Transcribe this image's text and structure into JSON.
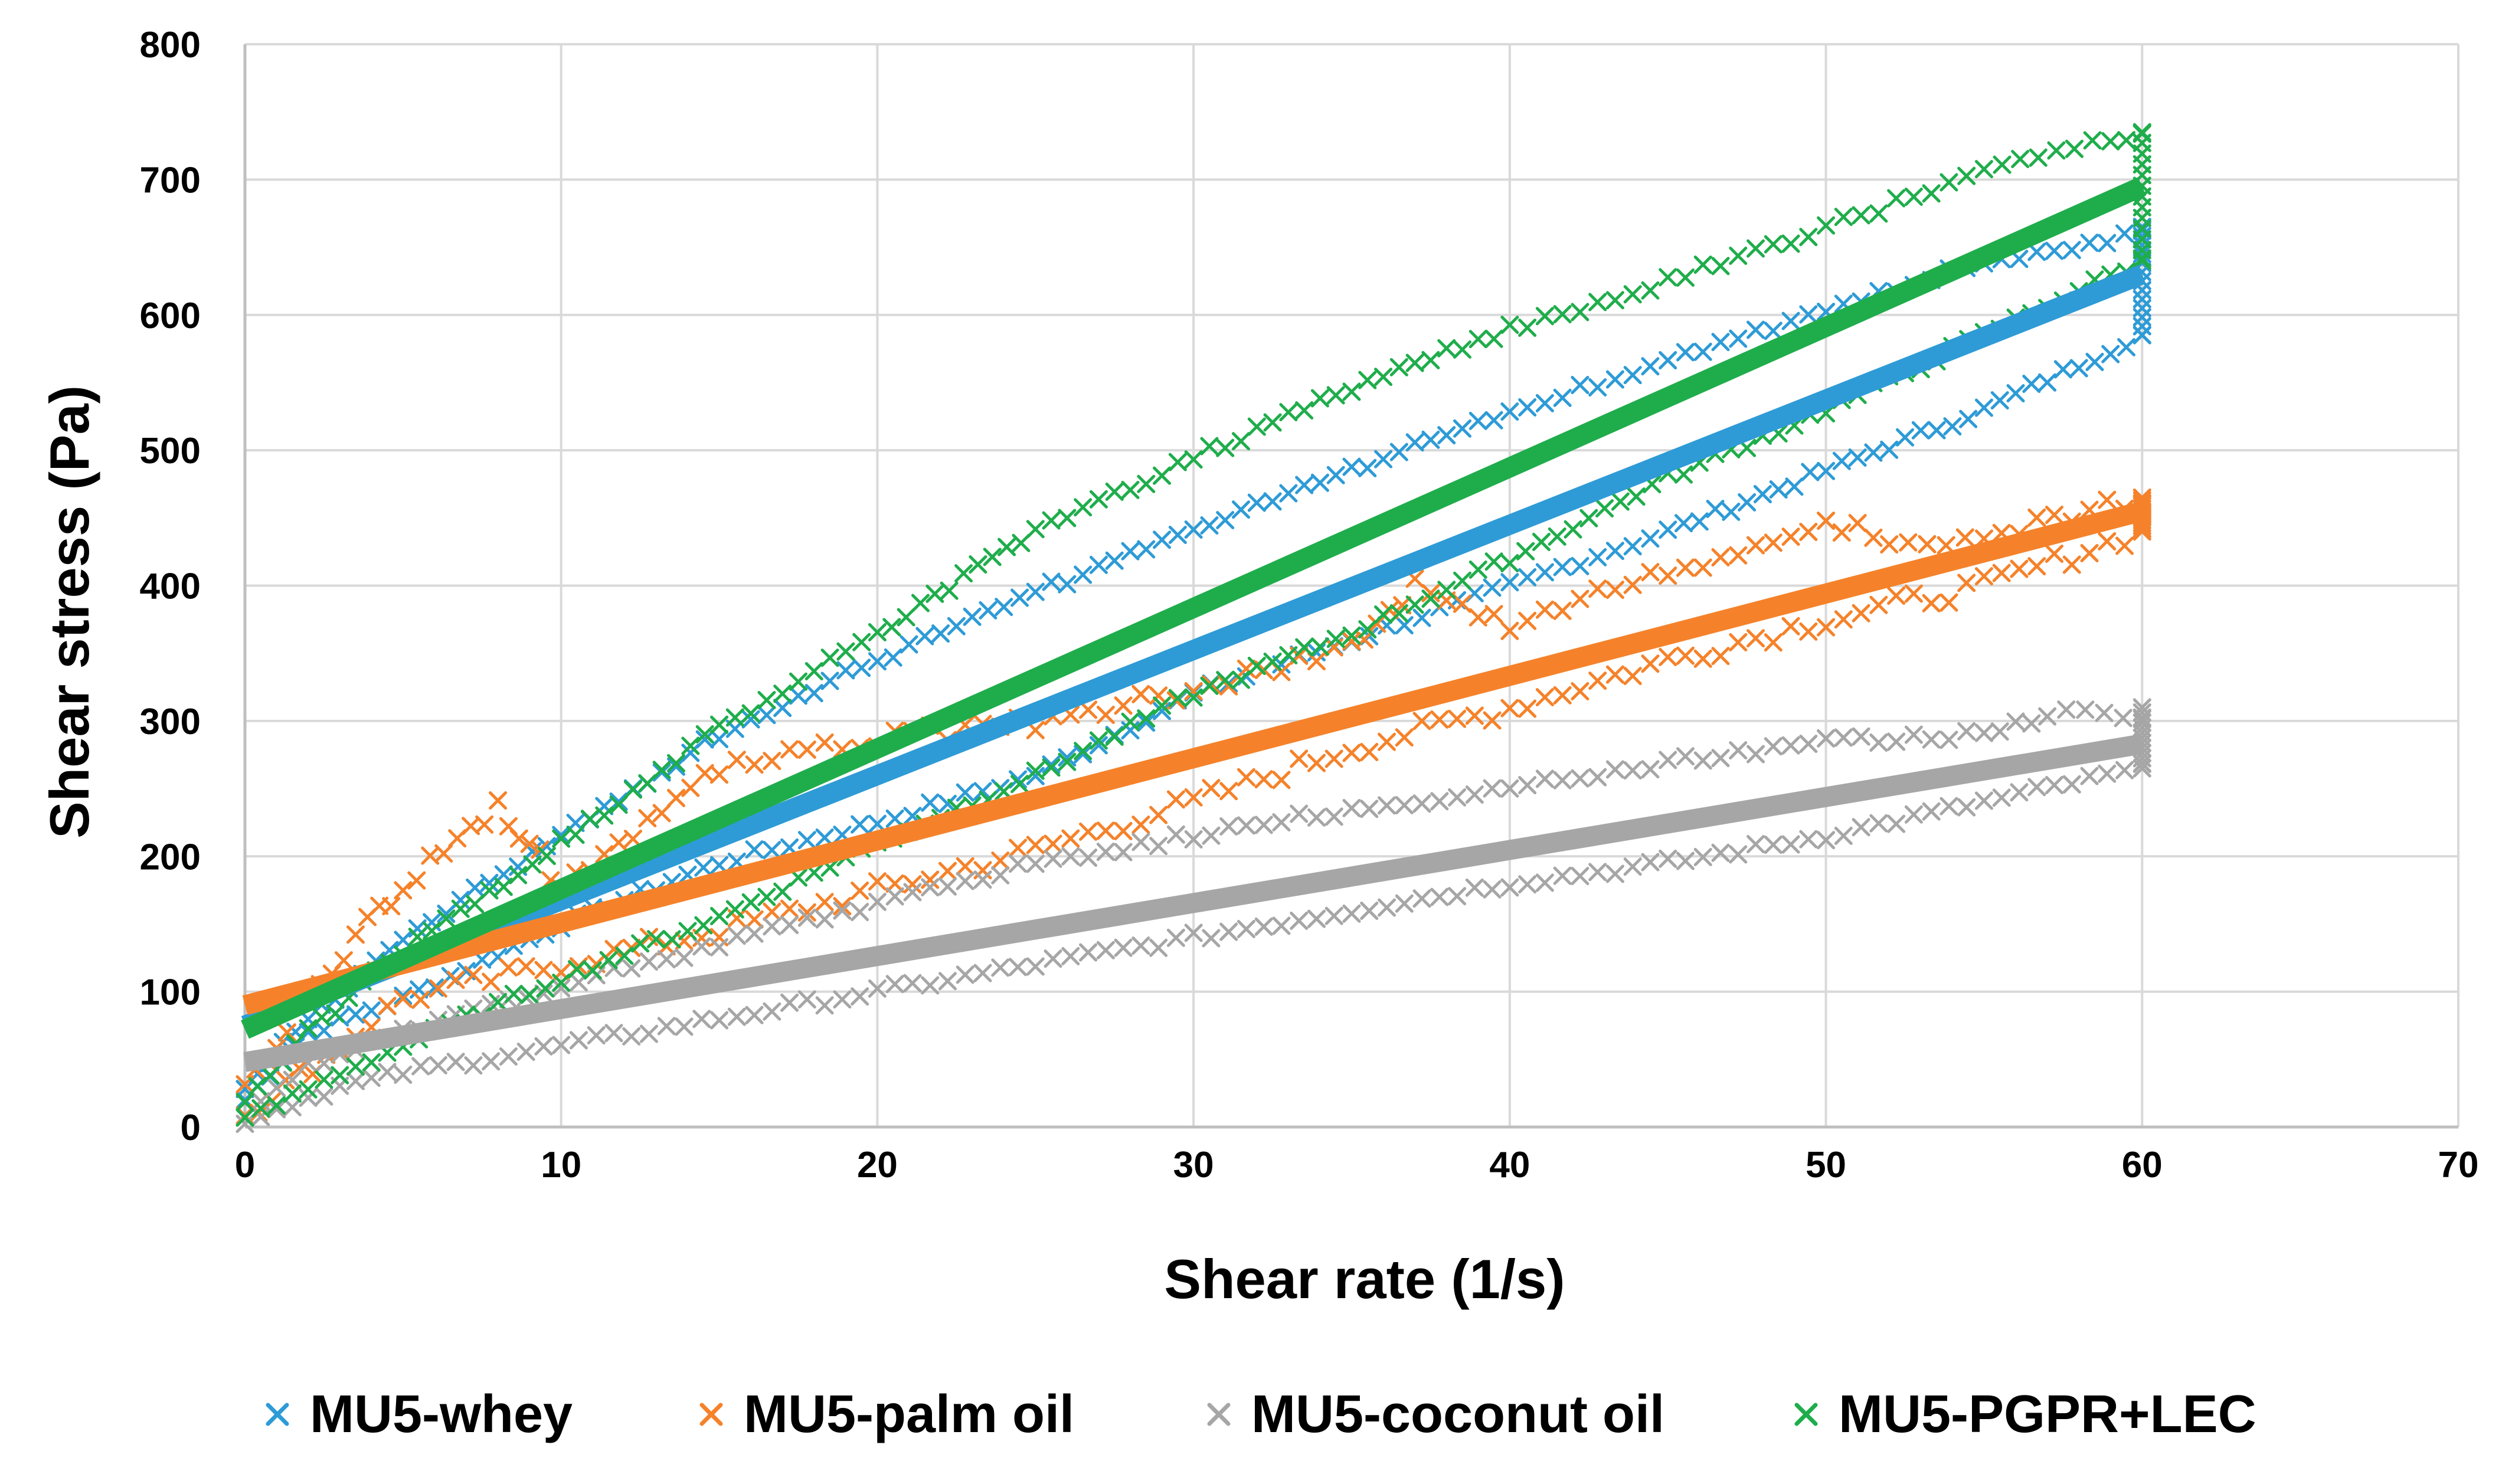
{
  "chart_data": {
    "type": "scatter",
    "title": "",
    "xlabel": "Shear rate (1/s)",
    "ylabel": "Shear stress (Pa)",
    "xlim": [
      0,
      70
    ],
    "ylim": [
      0,
      800
    ],
    "x_ticks": [
      "0",
      "10",
      "20",
      "30",
      "40",
      "50",
      "60",
      "70"
    ],
    "y_ticks": [
      "0",
      "100",
      "200",
      "300",
      "400",
      "500",
      "600",
      "700",
      "800"
    ],
    "grid": "vertical and horizontal major gridlines",
    "legend_position": "bottom",
    "marker": "x",
    "series": [
      {
        "name": "MU5-whey",
        "color": "#2E9BD6",
        "trend_line": [
          [
            0,
            75
          ],
          [
            60,
            630
          ]
        ],
        "up_curve": [
          [
            0,
            20
          ],
          [
            2,
            70
          ],
          [
            5,
            95
          ],
          [
            10,
            150
          ],
          [
            15,
            195
          ],
          [
            20,
            225
          ],
          [
            25,
            260
          ],
          [
            30,
            320
          ],
          [
            35,
            360
          ],
          [
            40,
            400
          ],
          [
            45,
            440
          ],
          [
            50,
            485
          ],
          [
            55,
            530
          ],
          [
            60,
            585
          ]
        ],
        "down_curve": [
          [
            60,
            660
          ],
          [
            55,
            640
          ],
          [
            50,
            605
          ],
          [
            45,
            565
          ],
          [
            40,
            530
          ],
          [
            35,
            485
          ],
          [
            30,
            440
          ],
          [
            25,
            395
          ],
          [
            20,
            345
          ],
          [
            15,
            290
          ],
          [
            10,
            215
          ],
          [
            5,
            140
          ],
          [
            2,
            80
          ],
          [
            0,
            30
          ]
        ],
        "vertical_spread_at_60": [
          585,
          665
        ]
      },
      {
        "name": "MU5-palm oil",
        "color": "#F5822A",
        "trend_line": [
          [
            0,
            90
          ],
          [
            60,
            455
          ]
        ],
        "up_curve": [
          [
            0,
            10
          ],
          [
            3,
            60
          ],
          [
            5,
            95
          ],
          [
            10,
            120
          ],
          [
            15,
            145
          ],
          [
            20,
            175
          ],
          [
            25,
            205
          ],
          [
            30,
            240
          ],
          [
            35,
            280
          ],
          [
            40,
            310
          ],
          [
            45,
            345
          ],
          [
            50,
            375
          ],
          [
            55,
            400
          ],
          [
            60,
            440
          ]
        ],
        "down_curve": [
          [
            60,
            462
          ],
          [
            55,
            440
          ],
          [
            52,
            430
          ],
          [
            50,
            450
          ],
          [
            45,
            410
          ],
          [
            40,
            370
          ],
          [
            37,
            400
          ],
          [
            35,
            355
          ],
          [
            30,
            325
          ],
          [
            25,
            300
          ],
          [
            20,
            285
          ],
          [
            15,
            265
          ],
          [
            10,
            180
          ],
          [
            8,
            235
          ],
          [
            5,
            180
          ],
          [
            2,
            100
          ],
          [
            0,
            30
          ]
        ],
        "vertical_spread_at_60": [
          440,
          465
        ]
      },
      {
        "name": "MU5-coconut oil",
        "color": "#A6A6A6",
        "trend_line": [
          [
            0,
            48
          ],
          [
            60,
            283
          ]
        ],
        "up_curve": [
          [
            0,
            5
          ],
          [
            3,
            30
          ],
          [
            5,
            40
          ],
          [
            10,
            60
          ],
          [
            15,
            80
          ],
          [
            20,
            100
          ],
          [
            25,
            120
          ],
          [
            30,
            140
          ],
          [
            35,
            160
          ],
          [
            40,
            180
          ],
          [
            45,
            195
          ],
          [
            50,
            215
          ],
          [
            55,
            240
          ],
          [
            60,
            265
          ]
        ],
        "down_curve": [
          [
            60,
            305
          ],
          [
            57,
            305
          ],
          [
            55,
            290
          ],
          [
            50,
            285
          ],
          [
            45,
            270
          ],
          [
            40,
            250
          ],
          [
            35,
            235
          ],
          [
            30,
            215
          ],
          [
            25,
            195
          ],
          [
            20,
            165
          ],
          [
            15,
            135
          ],
          [
            10,
            105
          ],
          [
            5,
            70
          ],
          [
            2,
            45
          ],
          [
            0,
            10
          ]
        ],
        "vertical_spread_at_60": [
          265,
          310
        ]
      },
      {
        "name": "MU5-PGPR+LEC",
        "color": "#1FAD4B",
        "trend_line": [
          [
            0,
            72
          ],
          [
            60,
            695
          ]
        ],
        "up_curve": [
          [
            0,
            5
          ],
          [
            3,
            40
          ],
          [
            5,
            60
          ],
          [
            10,
            110
          ],
          [
            15,
            155
          ],
          [
            20,
            210
          ],
          [
            25,
            260
          ],
          [
            30,
            320
          ],
          [
            35,
            365
          ],
          [
            40,
            420
          ],
          [
            45,
            480
          ],
          [
            50,
            530
          ],
          [
            55,
            585
          ],
          [
            60,
            640
          ]
        ],
        "down_curve": [
          [
            60,
            735
          ],
          [
            59,
            730
          ],
          [
            55,
            705
          ],
          [
            50,
            665
          ],
          [
            45,
            625
          ],
          [
            40,
            590
          ],
          [
            35,
            545
          ],
          [
            30,
            495
          ],
          [
            25,
            440
          ],
          [
            20,
            365
          ],
          [
            15,
            295
          ],
          [
            10,
            210
          ],
          [
            5,
            130
          ],
          [
            2,
            70
          ],
          [
            0,
            20
          ]
        ],
        "vertical_spread_at_60": [
          640,
          735
        ]
      }
    ]
  }
}
